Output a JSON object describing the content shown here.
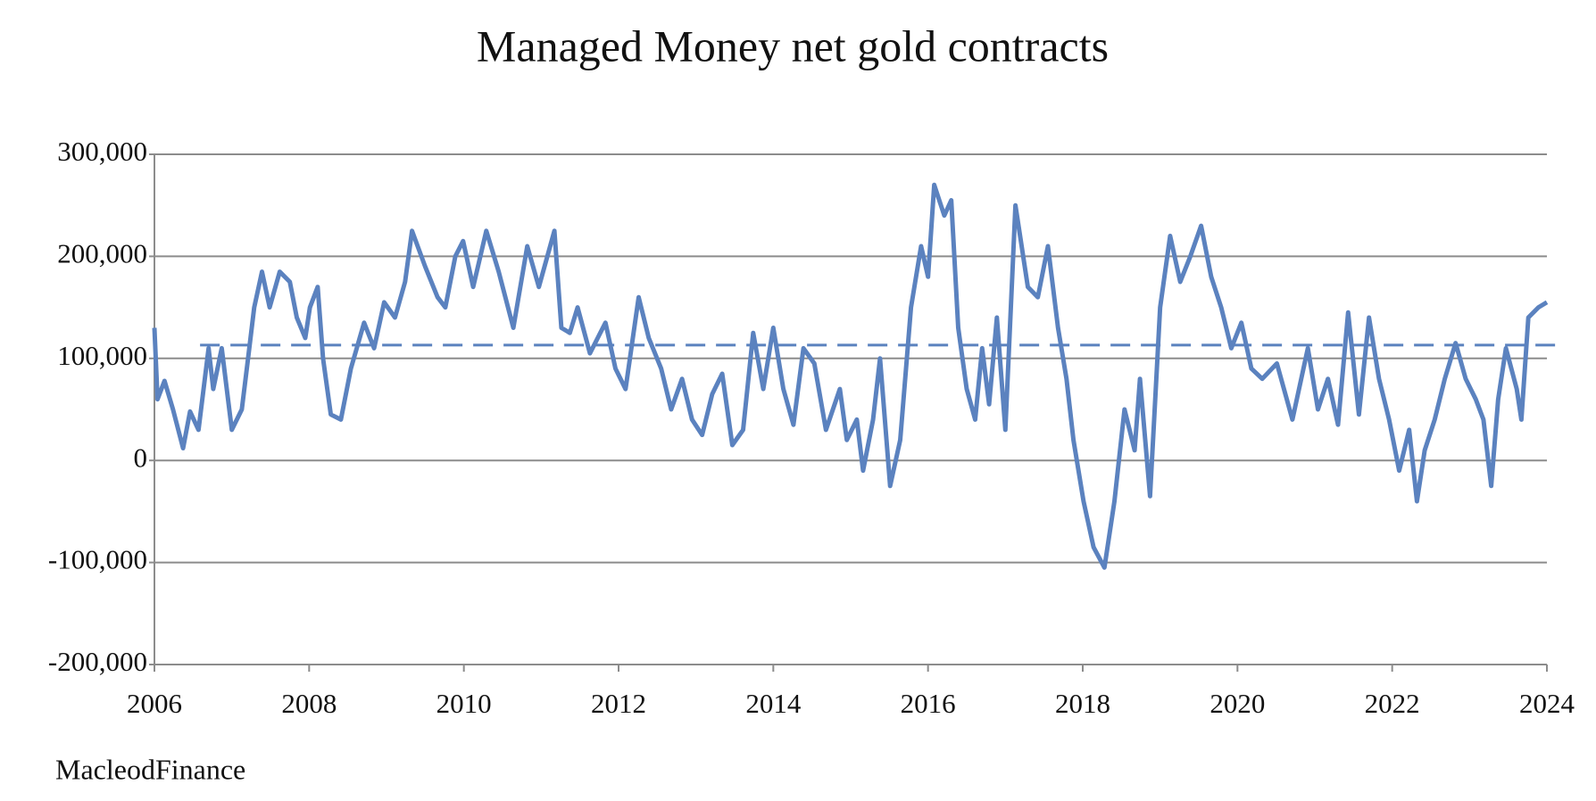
{
  "chart_data": {
    "type": "line",
    "title": "Managed Money net gold contracts",
    "source": "MacleodFinance",
    "color": "#5b82bf",
    "x": [
      2006.0,
      2006.04,
      2006.13,
      2006.24,
      2006.37,
      2006.46,
      2006.57,
      2006.7,
      2006.76,
      2006.87,
      2007.0,
      2007.13,
      2007.21,
      2007.29,
      2007.39,
      2007.49,
      2007.62,
      2007.75,
      2007.84,
      2007.95,
      2008.01,
      2008.11,
      2008.18,
      2008.28,
      2008.41,
      2008.54,
      2008.71,
      2008.84,
      2008.97,
      2009.11,
      2009.24,
      2009.33,
      2009.5,
      2009.66,
      2009.76,
      2009.89,
      2009.99,
      2010.12,
      2010.29,
      2010.45,
      2010.64,
      2010.82,
      2010.97,
      2011.17,
      2011.26,
      2011.37,
      2011.47,
      2011.63,
      2011.83,
      2011.96,
      2012.09,
      2012.26,
      2012.39,
      2012.55,
      2012.68,
      2012.82,
      2012.95,
      2013.08,
      2013.21,
      2013.34,
      2013.47,
      2013.61,
      2013.74,
      2013.87,
      2014.0,
      2014.13,
      2014.26,
      2014.39,
      2014.53,
      2014.68,
      2014.86,
      2014.95,
      2015.08,
      2015.16,
      2015.29,
      2015.38,
      2015.51,
      2015.64,
      2015.78,
      2015.91,
      2016.0,
      2016.08,
      2016.21,
      2016.3,
      2016.39,
      2016.5,
      2016.61,
      2016.7,
      2016.79,
      2016.89,
      2017.0,
      2017.13,
      2017.29,
      2017.42,
      2017.55,
      2017.68,
      2017.79,
      2017.88,
      2018.01,
      2018.14,
      2018.28,
      2018.41,
      2018.54,
      2018.67,
      2018.74,
      2018.87,
      2019.0,
      2019.13,
      2019.26,
      2019.39,
      2019.53,
      2019.66,
      2019.79,
      2019.92,
      2020.05,
      2020.18,
      2020.32,
      2020.51,
      2020.71,
      2020.91,
      2021.04,
      2021.17,
      2021.3,
      2021.43,
      2021.57,
      2021.7,
      2021.83,
      2021.96,
      2022.09,
      2022.22,
      2022.32,
      2022.42,
      2022.55,
      2022.68,
      2022.82,
      2022.95,
      2023.08,
      2023.18,
      2023.28,
      2023.37,
      2023.47,
      2023.61,
      2023.67,
      2023.76,
      2023.89,
      2024.0
    ],
    "values": [
      130000,
      60000,
      78000,
      50000,
      12000,
      48000,
      30000,
      110000,
      70000,
      110000,
      30000,
      50000,
      100000,
      150000,
      185000,
      150000,
      185000,
      175000,
      140000,
      120000,
      150000,
      170000,
      100000,
      45000,
      40000,
      90000,
      135000,
      110000,
      155000,
      140000,
      175000,
      225000,
      190000,
      160000,
      150000,
      200000,
      215000,
      170000,
      225000,
      185000,
      130000,
      210000,
      170000,
      225000,
      130000,
      125000,
      150000,
      105000,
      135000,
      90000,
      70000,
      160000,
      120000,
      90000,
      50000,
      80000,
      40000,
      25000,
      65000,
      85000,
      15000,
      30000,
      125000,
      70000,
      130000,
      70000,
      35000,
      110000,
      95000,
      30000,
      70000,
      20000,
      40000,
      -10000,
      40000,
      100000,
      -25000,
      20000,
      150000,
      210000,
      180000,
      270000,
      240000,
      255000,
      130000,
      70000,
      40000,
      110000,
      55000,
      140000,
      30000,
      250000,
      170000,
      160000,
      210000,
      130000,
      80000,
      20000,
      -40000,
      -85000,
      -105000,
      -40000,
      50000,
      10000,
      80000,
      -35000,
      150000,
      220000,
      175000,
      200000,
      230000,
      180000,
      150000,
      110000,
      135000,
      90000,
      80000,
      95000,
      40000,
      110000,
      50000,
      80000,
      35000,
      145000,
      45000,
      140000,
      80000,
      40000,
      -10000,
      30000,
      -40000,
      10000,
      40000,
      80000,
      115000,
      80000,
      60000,
      40000,
      -25000,
      60000,
      110000,
      70000,
      40000,
      140000,
      150000,
      155000
    ],
    "average": {
      "x": [
        2006.59,
        2024.2
      ],
      "value": 113000,
      "dashed": true
    },
    "xlim": [
      2006,
      2024
    ],
    "xticks": [
      2006,
      2008,
      2010,
      2012,
      2014,
      2016,
      2018,
      2020,
      2022,
      2024
    ],
    "ylim": [
      -200000,
      300000
    ],
    "yticks": [
      {
        "value": -200000,
        "label": "-200,000"
      },
      {
        "value": -100000,
        "label": "-100,000"
      },
      0,
      {
        "value": 100000,
        "label": "100,000"
      },
      {
        "value": 200000,
        "label": "200,000"
      },
      {
        "value": 300000,
        "label": "300,000"
      }
    ],
    "grid": true
  }
}
